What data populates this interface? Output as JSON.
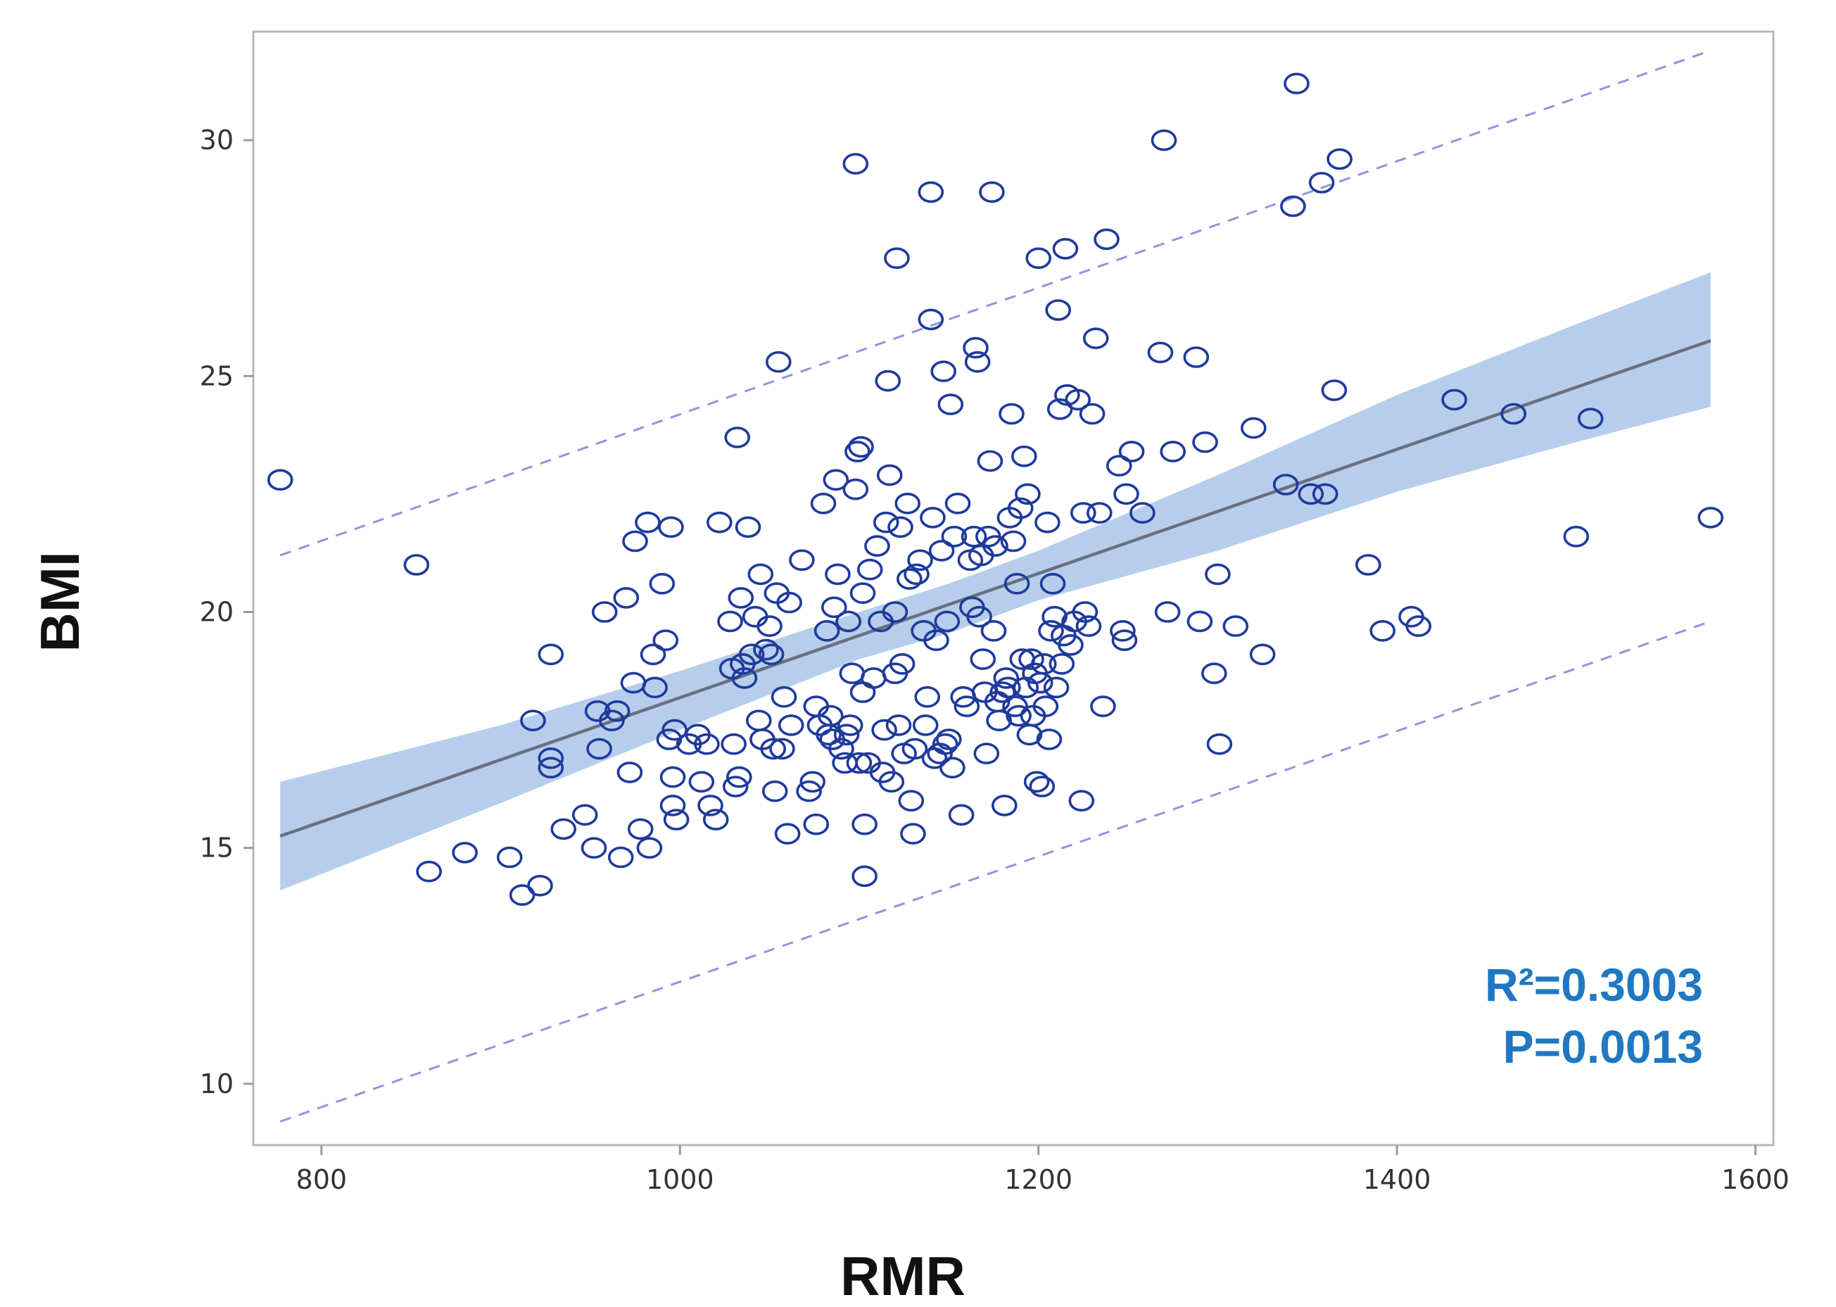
{
  "chart_data": {
    "type": "scatter",
    "title": "",
    "xlabel": "RMR",
    "ylabel": "BMI",
    "xlim": [
      762,
      1610
    ],
    "ylim": [
      8.7,
      32.3
    ],
    "xticks": [
      800,
      1000,
      1200,
      1400,
      1600
    ],
    "yticks": [
      10,
      15,
      20,
      25,
      30
    ],
    "xtick_labels": [
      "800",
      "1000",
      "1200",
      "1400",
      "1600"
    ],
    "ytick_labels": [
      "10",
      "15",
      "20",
      "25",
      "30"
    ],
    "grid": false,
    "annotations": [
      "R²=0.3003",
      "P=0.0013"
    ],
    "annotation_color": "#1f78c1",
    "marker_color": "#1f3a9c",
    "fit_line_color": "#6a6f80",
    "band_color": "#a9c6e8",
    "prediction_line_color": "#8f96d8",
    "fit_line": {
      "x": [
        777,
        1575
      ],
      "y": [
        15.25,
        25.75
      ]
    },
    "confidence_band": {
      "x": [
        777,
        900,
        1000,
        1100,
        1150,
        1200,
        1300,
        1400,
        1500,
        1575
      ],
      "upper": [
        16.4,
        17.6,
        18.75,
        20.0,
        20.6,
        21.3,
        22.9,
        24.6,
        26.1,
        27.2
      ],
      "lower": [
        14.1,
        15.95,
        17.5,
        19.0,
        19.55,
        20.25,
        21.3,
        22.55,
        23.6,
        24.35
      ]
    },
    "prediction_upper": {
      "x": [
        777,
        1575
      ],
      "y": [
        21.2,
        31.9
      ]
    },
    "prediction_lower": {
      "x": [
        777,
        1575
      ],
      "y": [
        9.2,
        19.8
      ]
    },
    "points": [
      [
        777,
        22.8
      ],
      [
        853,
        21.0
      ],
      [
        860,
        14.5
      ],
      [
        880,
        14.9
      ],
      [
        905,
        14.8
      ],
      [
        912,
        14.0
      ],
      [
        918,
        17.7
      ],
      [
        922,
        14.2
      ],
      [
        928,
        19.1
      ],
      [
        928,
        16.9
      ],
      [
        928,
        16.7
      ],
      [
        935,
        15.4
      ],
      [
        947,
        15.7
      ],
      [
        952,
        15.0
      ],
      [
        954,
        17.9
      ],
      [
        955,
        17.1
      ],
      [
        958,
        20.0
      ],
      [
        962,
        17.7
      ],
      [
        965,
        17.9
      ],
      [
        967,
        14.8
      ],
      [
        970,
        20.3
      ],
      [
        972,
        16.6
      ],
      [
        974,
        18.5
      ],
      [
        975,
        21.5
      ],
      [
        978,
        15.4
      ],
      [
        982,
        21.9
      ],
      [
        983,
        15.0
      ],
      [
        985,
        19.1
      ],
      [
        986,
        18.4
      ],
      [
        990,
        20.6
      ],
      [
        992,
        19.4
      ],
      [
        994,
        17.3
      ],
      [
        995,
        21.8
      ],
      [
        996,
        16.5
      ],
      [
        996,
        15.9
      ],
      [
        997,
        17.5
      ],
      [
        998,
        15.6
      ],
      [
        1005,
        17.2
      ],
      [
        1010,
        17.4
      ],
      [
        1012,
        16.4
      ],
      [
        1015,
        17.2
      ],
      [
        1017,
        15.9
      ],
      [
        1020,
        15.6
      ],
      [
        1022,
        21.9
      ],
      [
        1028,
        19.8
      ],
      [
        1029,
        18.8
      ],
      [
        1030,
        17.2
      ],
      [
        1031,
        16.3
      ],
      [
        1032,
        23.7
      ],
      [
        1033,
        16.5
      ],
      [
        1034,
        20.3
      ],
      [
        1035,
        18.9
      ],
      [
        1036,
        18.6
      ],
      [
        1038,
        21.8
      ],
      [
        1040,
        19.1
      ],
      [
        1042,
        19.9
      ],
      [
        1044,
        17.7
      ],
      [
        1045,
        20.8
      ],
      [
        1046,
        17.3
      ],
      [
        1048,
        19.2
      ],
      [
        1050,
        19.7
      ],
      [
        1051,
        19.1
      ],
      [
        1052,
        17.1
      ],
      [
        1053,
        16.2
      ],
      [
        1054,
        20.4
      ],
      [
        1055,
        25.3
      ],
      [
        1057,
        17.1
      ],
      [
        1058,
        18.2
      ],
      [
        1060,
        15.3
      ],
      [
        1061,
        20.2
      ],
      [
        1062,
        17.6
      ],
      [
        1068,
        21.1
      ],
      [
        1072,
        16.2
      ],
      [
        1074,
        16.4
      ],
      [
        1076,
        15.5
      ],
      [
        1076,
        18.0
      ],
      [
        1078,
        17.6
      ],
      [
        1080,
        22.3
      ],
      [
        1082,
        19.6
      ],
      [
        1083,
        17.4
      ],
      [
        1084,
        17.8
      ],
      [
        1085,
        17.3
      ],
      [
        1086,
        20.1
      ],
      [
        1087,
        22.8
      ],
      [
        1088,
        20.8
      ],
      [
        1090,
        17.1
      ],
      [
        1092,
        16.8
      ],
      [
        1093,
        17.4
      ],
      [
        1094,
        19.8
      ],
      [
        1095,
        17.6
      ],
      [
        1096,
        18.7
      ],
      [
        1098,
        22.6
      ],
      [
        1098,
        29.5
      ],
      [
        1099,
        23.4
      ],
      [
        1100,
        16.8
      ],
      [
        1101,
        23.5
      ],
      [
        1102,
        20.4
      ],
      [
        1102,
        18.3
      ],
      [
        1103,
        15.5
      ],
      [
        1103,
        14.4
      ],
      [
        1105,
        16.8
      ],
      [
        1106,
        20.9
      ],
      [
        1108,
        18.6
      ],
      [
        1110,
        21.4
      ],
      [
        1112,
        19.8
      ],
      [
        1113,
        16.6
      ],
      [
        1114,
        17.5
      ],
      [
        1115,
        21.9
      ],
      [
        1116,
        24.9
      ],
      [
        1117,
        22.9
      ],
      [
        1118,
        16.4
      ],
      [
        1120,
        20.0
      ],
      [
        1120,
        18.7
      ],
      [
        1121,
        27.5
      ],
      [
        1122,
        17.6
      ],
      [
        1123,
        21.8
      ],
      [
        1124,
        18.9
      ],
      [
        1125,
        17.0
      ],
      [
        1127,
        22.3
      ],
      [
        1128,
        20.7
      ],
      [
        1129,
        16.0
      ],
      [
        1130,
        15.3
      ],
      [
        1131,
        17.1
      ],
      [
        1132,
        20.8
      ],
      [
        1134,
        21.1
      ],
      [
        1136,
        19.6
      ],
      [
        1137,
        17.6
      ],
      [
        1138,
        18.2
      ],
      [
        1140,
        26.2
      ],
      [
        1140,
        28.9
      ],
      [
        1141,
        22.0
      ],
      [
        1142,
        16.9
      ],
      [
        1143,
        19.4
      ],
      [
        1145,
        17.0
      ],
      [
        1146,
        21.3
      ],
      [
        1147,
        25.1
      ],
      [
        1148,
        17.2
      ],
      [
        1149,
        19.8
      ],
      [
        1150,
        17.3
      ],
      [
        1151,
        24.4
      ],
      [
        1152,
        16.7
      ],
      [
        1153,
        21.6
      ],
      [
        1155,
        22.3
      ],
      [
        1157,
        15.7
      ],
      [
        1158,
        18.2
      ],
      [
        1160,
        18.0
      ],
      [
        1162,
        21.1
      ],
      [
        1163,
        20.1
      ],
      [
        1164,
        21.6
      ],
      [
        1165,
        25.6
      ],
      [
        1166,
        25.3
      ],
      [
        1167,
        19.9
      ],
      [
        1168,
        21.2
      ],
      [
        1169,
        19.0
      ],
      [
        1170,
        18.3
      ],
      [
        1171,
        17.0
      ],
      [
        1172,
        21.6
      ],
      [
        1173,
        23.2
      ],
      [
        1174,
        28.9
      ],
      [
        1175,
        19.6
      ],
      [
        1176,
        21.4
      ],
      [
        1177,
        18.1
      ],
      [
        1178,
        17.7
      ],
      [
        1180,
        18.3
      ],
      [
        1181,
        15.9
      ],
      [
        1182,
        18.6
      ],
      [
        1183,
        18.4
      ],
      [
        1184,
        22.0
      ],
      [
        1185,
        24.2
      ],
      [
        1186,
        21.5
      ],
      [
        1187,
        18.0
      ],
      [
        1188,
        20.6
      ],
      [
        1189,
        17.8
      ],
      [
        1190,
        22.2
      ],
      [
        1191,
        19.0
      ],
      [
        1192,
        23.3
      ],
      [
        1193,
        18.4
      ],
      [
        1194,
        22.5
      ],
      [
        1195,
        17.4
      ],
      [
        1196,
        19.0
      ],
      [
        1197,
        17.8
      ],
      [
        1198,
        18.7
      ],
      [
        1199,
        16.4
      ],
      [
        1200,
        27.5
      ],
      [
        1201,
        18.5
      ],
      [
        1202,
        16.3
      ],
      [
        1203,
        18.9
      ],
      [
        1204,
        18.0
      ],
      [
        1205,
        21.9
      ],
      [
        1206,
        17.3
      ],
      [
        1207,
        19.6
      ],
      [
        1208,
        20.6
      ],
      [
        1209,
        19.9
      ],
      [
        1210,
        18.4
      ],
      [
        1211,
        26.4
      ],
      [
        1212,
        24.3
      ],
      [
        1213,
        18.9
      ],
      [
        1214,
        19.5
      ],
      [
        1215,
        27.7
      ],
      [
        1216,
        24.6
      ],
      [
        1218,
        19.3
      ],
      [
        1220,
        19.8
      ],
      [
        1222,
        24.5
      ],
      [
        1224,
        16.0
      ],
      [
        1225,
        22.1
      ],
      [
        1226,
        20.0
      ],
      [
        1228,
        19.7
      ],
      [
        1230,
        24.2
      ],
      [
        1232,
        25.8
      ],
      [
        1234,
        22.1
      ],
      [
        1236,
        18.0
      ],
      [
        1238,
        27.9
      ],
      [
        1245,
        23.1
      ],
      [
        1247,
        19.6
      ],
      [
        1248,
        19.4
      ],
      [
        1249,
        22.5
      ],
      [
        1252,
        23.4
      ],
      [
        1258,
        22.1
      ],
      [
        1268,
        25.5
      ],
      [
        1270,
        30.0
      ],
      [
        1272,
        20.0
      ],
      [
        1275,
        23.4
      ],
      [
        1288,
        25.4
      ],
      [
        1290,
        19.8
      ],
      [
        1293,
        23.6
      ],
      [
        1298,
        18.7
      ],
      [
        1300,
        20.8
      ],
      [
        1301,
        17.2
      ],
      [
        1310,
        19.7
      ],
      [
        1320,
        23.9
      ],
      [
        1325,
        19.1
      ],
      [
        1338,
        22.7
      ],
      [
        1342,
        28.6
      ],
      [
        1344,
        31.2
      ],
      [
        1352,
        22.5
      ],
      [
        1358,
        29.1
      ],
      [
        1360,
        22.5
      ],
      [
        1365,
        24.7
      ],
      [
        1368,
        29.6
      ],
      [
        1384,
        21.0
      ],
      [
        1392,
        19.6
      ],
      [
        1408,
        19.9
      ],
      [
        1412,
        19.7
      ],
      [
        1432,
        24.5
      ],
      [
        1465,
        24.2
      ],
      [
        1500,
        21.6
      ],
      [
        1508,
        24.1
      ],
      [
        1575,
        22.0
      ]
    ]
  }
}
